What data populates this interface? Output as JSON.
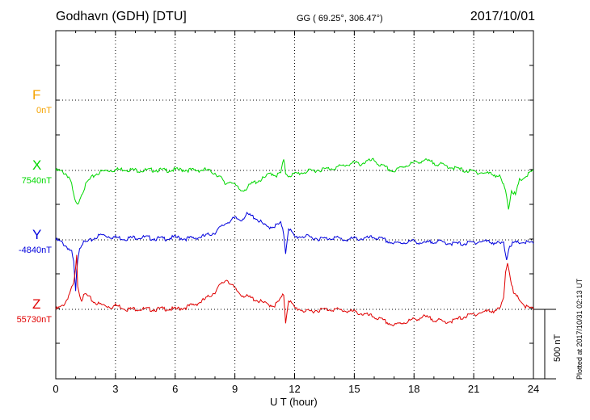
{
  "header": {
    "title": "Godhavn (GDH)  [DTU]",
    "coords": "GG ( 69.25°, 306.47°)",
    "date": "2017/10/01"
  },
  "footer": {
    "plotted": "Plotted at 2017/10/31 02:13 UT"
  },
  "chart_data": {
    "type": "line",
    "title": "Godhavn (GDH)  [DTU]",
    "xlabel": "U T (hour)",
    "xlim": [
      0,
      24
    ],
    "xticks": [
      0,
      3,
      6,
      9,
      12,
      15,
      18,
      21,
      24
    ],
    "grid": true,
    "scale_bar": {
      "label": "500 nT",
      "value_nT": 500
    },
    "colors": {
      "F": "#f5a300",
      "X": "#00d800",
      "Y": "#0000dd",
      "Z": "#e00000"
    },
    "series": [
      {
        "name": "F",
        "baseline": "0nT",
        "x": [],
        "y": []
      },
      {
        "name": "X",
        "baseline": "7540nT",
        "x": [
          0,
          0.3,
          0.5,
          0.7,
          0.8,
          0.9,
          1.0,
          1.1,
          1.2,
          1.4,
          1.6,
          1.8,
          2.0,
          2.3,
          2.6,
          3.0,
          3.4,
          3.8,
          4.2,
          4.6,
          5.0,
          5.5,
          6.0,
          6.5,
          7.0,
          7.5,
          8.0,
          8.3,
          8.5,
          8.8,
          9.0,
          9.3,
          9.6,
          9.9,
          10.2,
          10.5,
          10.8,
          11.1,
          11.3,
          11.45,
          11.55,
          11.7,
          12.0,
          12.3,
          12.6,
          13.0,
          13.5,
          14.0,
          14.5,
          15.0,
          15.3,
          15.6,
          16.0,
          16.3,
          16.6,
          17.0,
          17.3,
          17.6,
          18.0,
          18.5,
          19.0,
          19.5,
          20.0,
          20.5,
          21.0,
          21.5,
          22.0,
          22.3,
          22.5,
          22.65,
          22.75,
          22.9,
          23.1,
          23.3,
          23.6,
          24.0
        ],
        "y": [
          0,
          -10,
          -25,
          -60,
          -120,
          -200,
          -260,
          -280,
          -220,
          -150,
          -90,
          -60,
          -30,
          -10,
          0,
          5,
          10,
          5,
          0,
          0,
          5,
          0,
          5,
          5,
          0,
          5,
          -20,
          -60,
          -110,
          -80,
          -120,
          -160,
          -140,
          -100,
          -80,
          -60,
          -20,
          -40,
          -20,
          80,
          -20,
          -40,
          -30,
          -20,
          -10,
          0,
          10,
          20,
          40,
          60,
          50,
          70,
          80,
          40,
          20,
          -10,
          20,
          40,
          60,
          80,
          60,
          40,
          20,
          0,
          -10,
          -20,
          -30,
          -50,
          -120,
          -200,
          -300,
          -150,
          -200,
          -80,
          -50,
          0
        ]
      },
      {
        "name": "Y",
        "baseline": "-4840nT",
        "x": [
          0,
          0.3,
          0.6,
          0.8,
          0.9,
          1.0,
          1.05,
          1.1,
          1.2,
          1.3,
          1.5,
          1.7,
          2.0,
          2.3,
          2.6,
          3.0,
          3.5,
          4.0,
          4.5,
          5.0,
          5.5,
          6.0,
          6.5,
          7.0,
          7.5,
          8.0,
          8.3,
          8.6,
          9.0,
          9.3,
          9.6,
          10.0,
          10.3,
          10.6,
          11.0,
          11.3,
          11.45,
          11.55,
          11.7,
          12.0,
          12.4,
          12.8,
          13.2,
          13.6,
          14.0,
          14.5,
          15.0,
          15.5,
          16.0,
          16.5,
          17.0,
          17.5,
          18.0,
          18.5,
          19.0,
          19.5,
          20.0,
          20.5,
          21.0,
          21.5,
          22.0,
          22.3,
          22.5,
          22.65,
          22.8,
          23.0,
          23.3,
          23.6,
          24.0
        ],
        "y": [
          0,
          -20,
          -60,
          -100,
          -180,
          -420,
          -250,
          -150,
          -60,
          -30,
          -20,
          -10,
          20,
          40,
          30,
          20,
          10,
          20,
          20,
          10,
          10,
          20,
          10,
          15,
          30,
          60,
          100,
          140,
          170,
          160,
          200,
          180,
          140,
          100,
          110,
          130,
          50,
          -100,
          100,
          20,
          30,
          20,
          10,
          10,
          20,
          0,
          10,
          10,
          20,
          0,
          -30,
          -20,
          -10,
          -30,
          -10,
          -20,
          -30,
          -30,
          -20,
          -10,
          -20,
          -30,
          -30,
          -150,
          -40,
          -30,
          -20,
          -20,
          -30
        ]
      },
      {
        "name": "Z",
        "baseline": "55730nT",
        "x": [
          0,
          0.3,
          0.5,
          0.7,
          0.9,
          1.0,
          1.05,
          1.1,
          1.2,
          1.3,
          1.5,
          1.7,
          1.9,
          2.2,
          2.5,
          2.8,
          3.0,
          3.3,
          3.6,
          4.0,
          4.5,
          5.0,
          5.5,
          6.0,
          6.5,
          7.0,
          7.3,
          7.6,
          8.0,
          8.2,
          8.4,
          8.6,
          8.8,
          9.0,
          9.3,
          9.6,
          10.0,
          10.3,
          10.6,
          11.0,
          11.3,
          11.45,
          11.55,
          11.7,
          12.0,
          12.3,
          12.6,
          13.0,
          13.5,
          14.0,
          14.5,
          15.0,
          15.5,
          16.0,
          16.3,
          16.6,
          17.0,
          17.3,
          17.6,
          18.0,
          18.5,
          19.0,
          19.5,
          20.0,
          20.5,
          21.0,
          21.5,
          22.0,
          22.3,
          22.5,
          22.6,
          22.7,
          22.85,
          23.0,
          23.3,
          23.6,
          24.0
        ],
        "y": [
          0,
          20,
          60,
          130,
          200,
          320,
          420,
          200,
          120,
          80,
          120,
          90,
          60,
          40,
          30,
          20,
          30,
          20,
          0,
          5,
          0,
          0,
          5,
          0,
          15,
          40,
          60,
          90,
          140,
          180,
          210,
          240,
          200,
          160,
          120,
          100,
          80,
          60,
          40,
          30,
          80,
          120,
          -100,
          80,
          10,
          0,
          -20,
          -10,
          0,
          0,
          -10,
          -20,
          -40,
          -60,
          -80,
          -100,
          -130,
          -110,
          -100,
          -80,
          -60,
          -80,
          -100,
          -90,
          -60,
          -40,
          -20,
          -10,
          0,
          80,
          300,
          380,
          250,
          120,
          80,
          20,
          0
        ]
      }
    ]
  }
}
